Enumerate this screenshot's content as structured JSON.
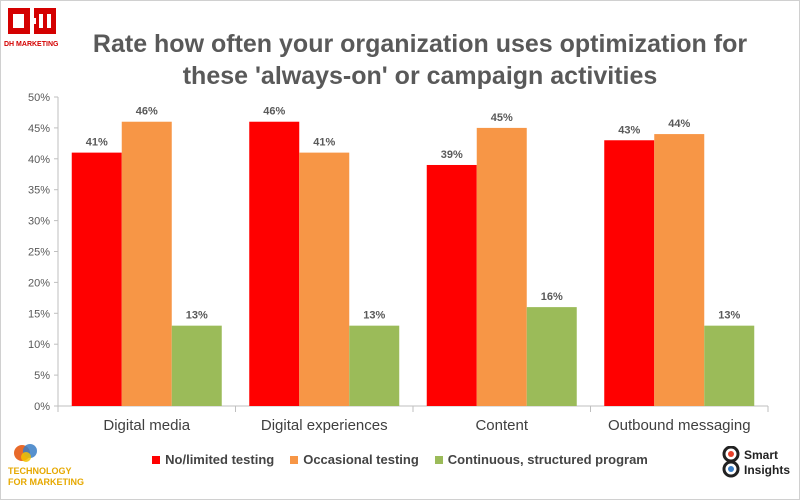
{
  "chart_data": {
    "type": "bar",
    "title_lines": [
      "Rate how often your organization uses optimization for",
      "these 'always-on' or campaign activities"
    ],
    "categories": [
      "Digital media",
      "Digital experiences",
      "Content",
      "Outbound messaging"
    ],
    "series": [
      {
        "name": "No/limited testing",
        "values": [
          41,
          46,
          39,
          43
        ],
        "labels": [
          "41%",
          "46%",
          "39%",
          "43%"
        ],
        "color": "#ff0000"
      },
      {
        "name": "Occasional testing",
        "values": [
          46,
          41,
          45,
          44
        ],
        "labels": [
          "46%",
          "41%",
          "45%",
          "44%"
        ],
        "color": "#f79646"
      },
      {
        "name": "Continuous, structured program",
        "values": [
          13,
          13,
          16,
          13
        ],
        "labels": [
          "13%",
          "13%",
          "16%",
          "13%"
        ],
        "color": "#9bbb59"
      }
    ],
    "ylim": [
      0,
      50
    ],
    "yticks": [
      0,
      5,
      10,
      15,
      20,
      25,
      30,
      35,
      40,
      45,
      50
    ],
    "ytick_labels": [
      "0%",
      "5%",
      "10%",
      "15%",
      "20%",
      "25%",
      "30%",
      "35%",
      "40%",
      "45%",
      "50%"
    ],
    "grid": false,
    "legend_position": "bottom"
  },
  "logos": {
    "dh_marketing": "DH MARKETING",
    "technology_for_marketing": [
      "TECHNOLOGY",
      "FOR MARKETING"
    ],
    "smart_insights": [
      "Smart",
      "Insights"
    ]
  }
}
